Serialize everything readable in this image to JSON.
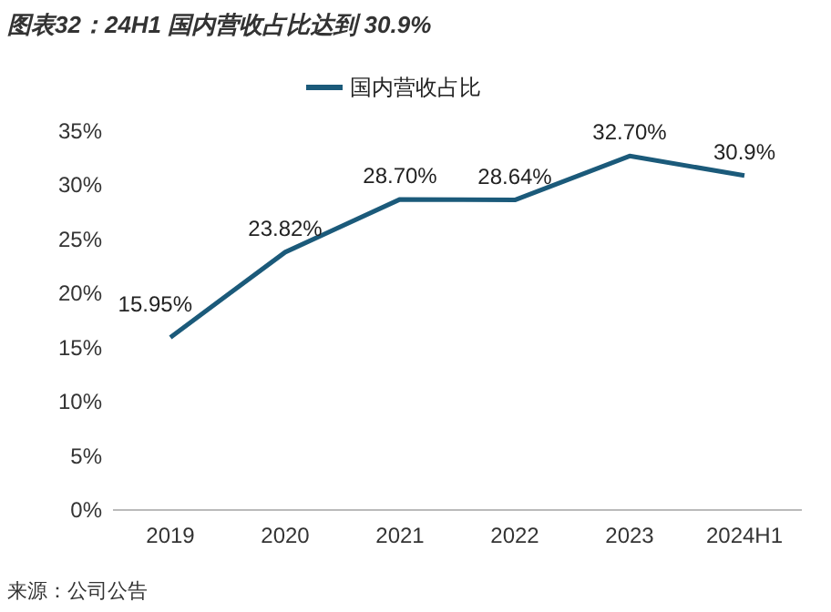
{
  "chart_data": {
    "type": "line",
    "title": "图表32：24H1 国内营收占比达到 30.9%",
    "categories": [
      "2019",
      "2020",
      "2021",
      "2022",
      "2023",
      "2024H1"
    ],
    "series": [
      {
        "name": "国内营收占比",
        "color": "#1b5a7a",
        "values": [
          15.95,
          23.82,
          28.7,
          28.64,
          32.7,
          30.9
        ],
        "value_labels": [
          "15.95%",
          "23.82%",
          "28.70%",
          "28.64%",
          "32.70%",
          "30.9%"
        ]
      }
    ],
    "ylim": [
      0,
      35
    ],
    "yticks": [
      {
        "value": 0,
        "label": "0%"
      },
      {
        "value": 5,
        "label": "5%"
      },
      {
        "value": 10,
        "label": "10%"
      },
      {
        "value": 15,
        "label": "15%"
      },
      {
        "value": 20,
        "label": "20%"
      },
      {
        "value": 25,
        "label": "25%"
      },
      {
        "value": 30,
        "label": "30%"
      },
      {
        "value": 35,
        "label": "35%"
      }
    ],
    "legend": "top",
    "annotations": [
      "来源：公司公告"
    ]
  }
}
